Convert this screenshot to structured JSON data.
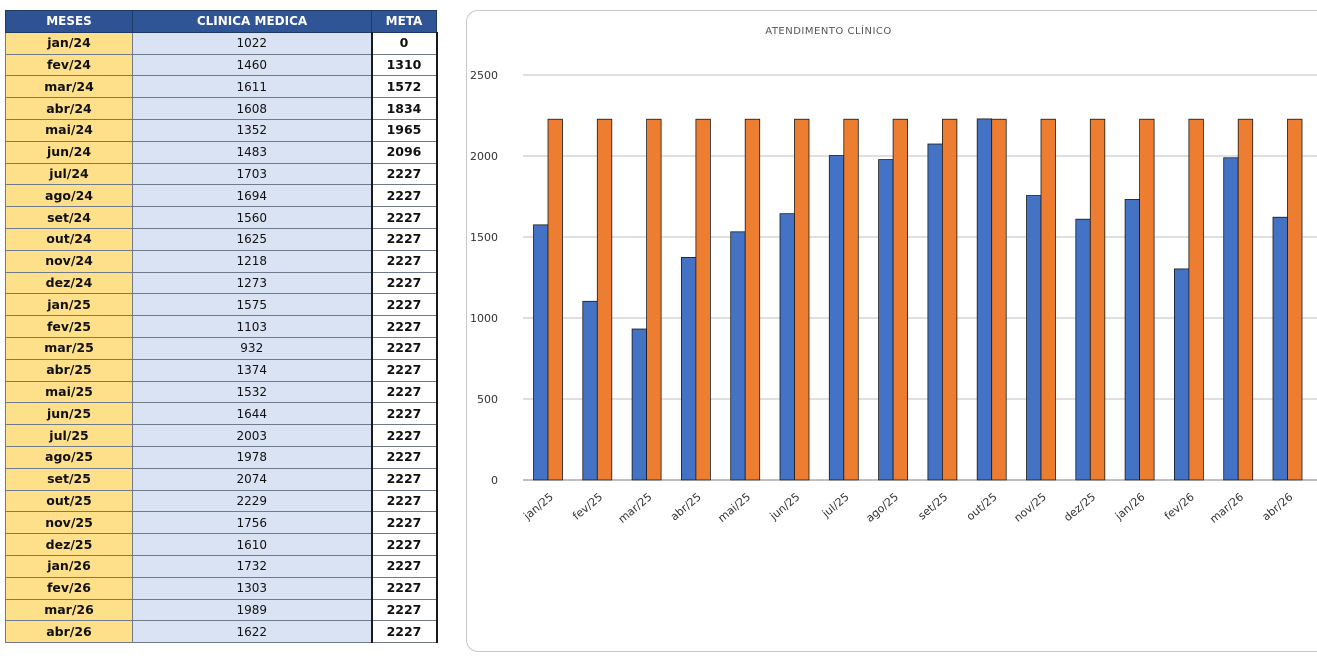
{
  "table": {
    "headers": [
      "MESES",
      "CLINICA MEDICA",
      "META"
    ],
    "rows": [
      [
        "jan/24",
        "1022",
        "0"
      ],
      [
        "fev/24",
        "1460",
        "1310"
      ],
      [
        "mar/24",
        "1611",
        "1572"
      ],
      [
        "abr/24",
        "1608",
        "1834"
      ],
      [
        "mai/24",
        "1352",
        "1965"
      ],
      [
        "jun/24",
        "1483",
        "2096"
      ],
      [
        "jul/24",
        "1703",
        "2227"
      ],
      [
        "ago/24",
        "1694",
        "2227"
      ],
      [
        "set/24",
        "1560",
        "2227"
      ],
      [
        "out/24",
        "1625",
        "2227"
      ],
      [
        "nov/24",
        "1218",
        "2227"
      ],
      [
        "dez/24",
        "1273",
        "2227"
      ],
      [
        "jan/25",
        "1575",
        "2227"
      ],
      [
        "fev/25",
        "1103",
        "2227"
      ],
      [
        "mar/25",
        "932",
        "2227"
      ],
      [
        "abr/25",
        "1374",
        "2227"
      ],
      [
        "mai/25",
        "1532",
        "2227"
      ],
      [
        "jun/25",
        "1644",
        "2227"
      ],
      [
        "jul/25",
        "2003",
        "2227"
      ],
      [
        "ago/25",
        "1978",
        "2227"
      ],
      [
        "set/25",
        "2074",
        "2227"
      ],
      [
        "out/25",
        "2229",
        "2227"
      ],
      [
        "nov/25",
        "1756",
        "2227"
      ],
      [
        "dez/25",
        "1610",
        "2227"
      ],
      [
        "jan/26",
        "1732",
        "2227"
      ],
      [
        "fev/26",
        "1303",
        "2227"
      ],
      [
        "mar/26",
        "1989",
        "2227"
      ],
      [
        "abr/26",
        "1622",
        "2227"
      ]
    ]
  },
  "colors": {
    "header_bg": "#2f5597",
    "month_bg": "#ffe08a",
    "clinic_bg": "#dae3f3",
    "series_clinica": "#4472c4",
    "series_meta": "#ed7d31"
  },
  "chart_data": {
    "type": "bar",
    "title": "ATENDIMENTO CLÍNICO",
    "categories": [
      "jan/25",
      "fev/25",
      "mar/25",
      "abr/25",
      "mai/25",
      "jun/25",
      "jul/25",
      "ago/25",
      "set/25",
      "out/25",
      "nov/25",
      "dez/25",
      "jan/26",
      "fev/26",
      "mar/26",
      "abr/26"
    ],
    "series": [
      {
        "values": [
          1575,
          1103,
          932,
          1374,
          1532,
          1644,
          2003,
          1978,
          2074,
          2229,
          1756,
          1610,
          1732,
          1303,
          1989,
          1622
        ],
        "color": "#4472c4"
      },
      {
        "values": [
          2227,
          2227,
          2227,
          2227,
          2227,
          2227,
          2227,
          2227,
          2227,
          2227,
          2227,
          2227,
          2227,
          2227,
          2227,
          2227
        ],
        "color": "#ed7d31"
      }
    ],
    "ylim": [
      0,
      2500
    ],
    "yticks": [
      0,
      500,
      1000,
      1500,
      2000,
      2500
    ],
    "grid": true,
    "legend": "none"
  }
}
